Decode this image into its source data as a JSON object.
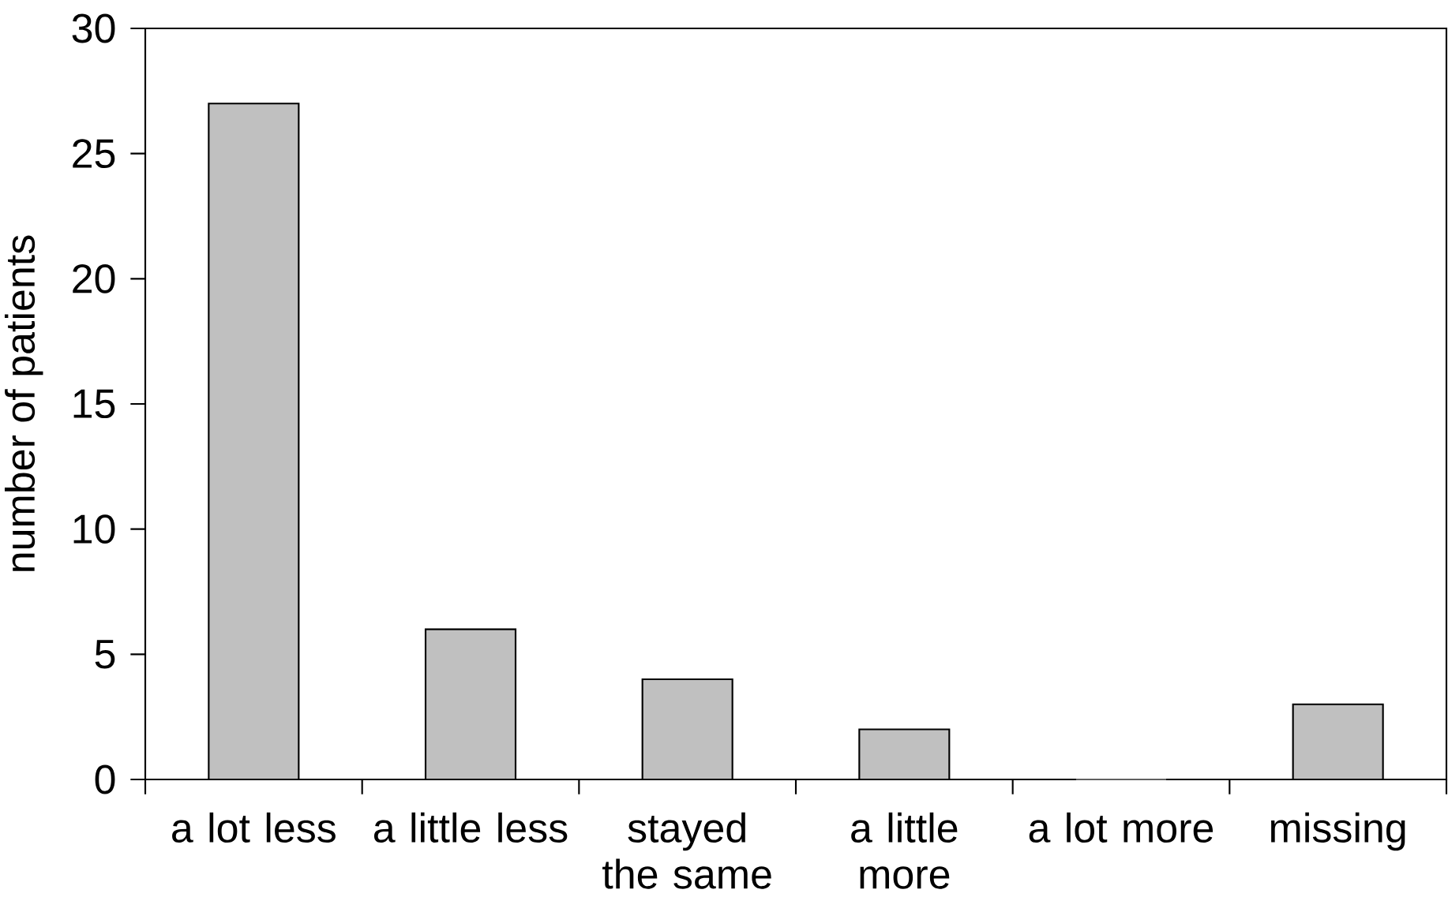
{
  "chart_data": {
    "type": "bar",
    "ylabel": "number of patients",
    "categories": [
      "a lot less",
      "a little less",
      "stayed the same",
      "a little more",
      "a lot more",
      "missing"
    ],
    "values": [
      27,
      6,
      4,
      2,
      0,
      3
    ],
    "color": "#c0c0c0",
    "ylim": [
      0,
      30
    ],
    "yticks": [
      0,
      5,
      10,
      15,
      20,
      25,
      30
    ]
  }
}
